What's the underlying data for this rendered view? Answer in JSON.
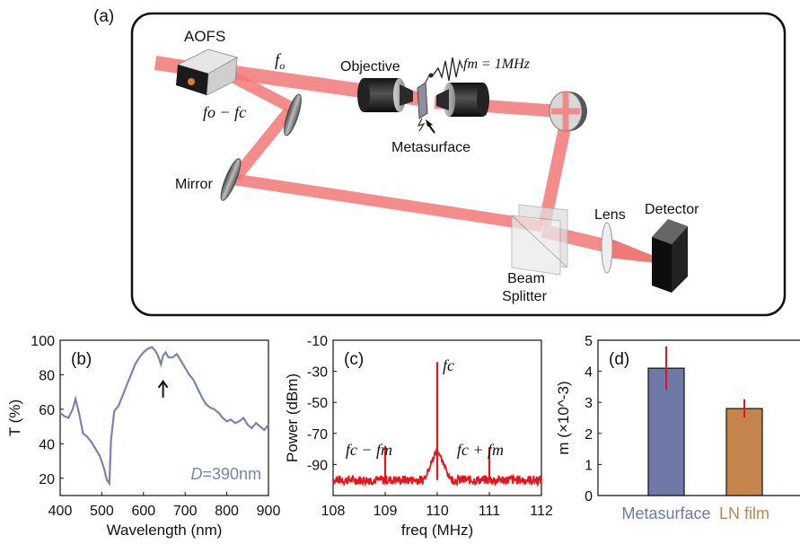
{
  "diagram": {
    "panel_label": "(a)",
    "labels": {
      "aofs": "AOFS",
      "fo": "f",
      "fo_sub": "o",
      "fo_minus_fc": "fo − fc",
      "objective": "Objective",
      "fm": "fm = 1MHz",
      "metasurface": "Metasurface",
      "mirror": "Mirror",
      "lens": "Lens",
      "detector": "Detector",
      "beam": "Beam",
      "splitter": "Splitter"
    },
    "colors": {
      "beam": "#f27878",
      "frame": "#111111"
    }
  },
  "chart_data": [
    {
      "type": "line",
      "panel_label": "(b)",
      "xlabel": "Wavelength (nm)",
      "ylabel": "T (%)",
      "xlim": [
        400,
        900
      ],
      "ylim": [
        10,
        100
      ],
      "xticks": [
        "400",
        "500",
        "600",
        "700",
        "800",
        "900"
      ],
      "yticks": [
        "20",
        "40",
        "60",
        "80",
        "100"
      ],
      "annotation": "D=390nm",
      "annotation_italic": "D",
      "annotation_rest": "=390nm",
      "color": "#7b82ae",
      "x": [
        400,
        410,
        420,
        430,
        437,
        445,
        455,
        465,
        475,
        485,
        495,
        505,
        512,
        518,
        522,
        530,
        540,
        550,
        560,
        570,
        580,
        590,
        600,
        610,
        620,
        628,
        635,
        642,
        647,
        653,
        660,
        670,
        680,
        690,
        700,
        710,
        720,
        730,
        740,
        750,
        760,
        770,
        780,
        790,
        800,
        810,
        820,
        830,
        840,
        850,
        860,
        870,
        880,
        890,
        900
      ],
      "y": [
        58,
        56,
        55,
        60,
        66,
        58,
        46,
        44,
        41,
        37,
        33,
        26,
        19,
        17,
        42,
        59,
        62,
        68,
        74,
        80,
        86,
        90,
        93,
        95,
        96,
        94,
        91,
        86,
        91,
        93,
        90,
        90,
        92,
        88,
        84,
        80,
        77,
        72,
        67,
        63,
        61,
        60,
        58,
        55,
        53,
        54,
        52,
        53,
        55,
        51,
        49,
        52,
        50,
        48,
        51
      ]
    },
    {
      "type": "line",
      "panel_label": "(c)",
      "xlabel": "freq (MHz)",
      "ylabel": "Power (dBm)",
      "xlim": [
        108,
        112
      ],
      "ylim": [
        -110,
        -10
      ],
      "xticks": [
        "108",
        "109",
        "110",
        "111",
        "112"
      ],
      "yticks": [
        "-10",
        "-30",
        "-50",
        "-70",
        "-90"
      ],
      "color": "#e8141a",
      "baseline": -100,
      "peaks": [
        {
          "x": 109.0,
          "y": -78
        },
        {
          "x": 110.0,
          "y": -24
        },
        {
          "x": 111.0,
          "y": -79
        }
      ],
      "annotations": {
        "center": "fc",
        "left": "fc − fm",
        "right": "fc + fm"
      }
    },
    {
      "type": "bar",
      "panel_label": "(d)",
      "ylabel": "m (×10^-3)",
      "ylim": [
        0,
        5
      ],
      "yticks": [
        "0",
        "1",
        "2",
        "3",
        "4",
        "5"
      ],
      "categories": [
        "Metasurface",
        "LN film"
      ],
      "values": [
        4.1,
        2.8
      ],
      "errors": [
        0.7,
        0.3
      ],
      "colors": [
        "#6f79a8",
        "#c4844b"
      ],
      "error_color": "#e8141a"
    }
  ]
}
